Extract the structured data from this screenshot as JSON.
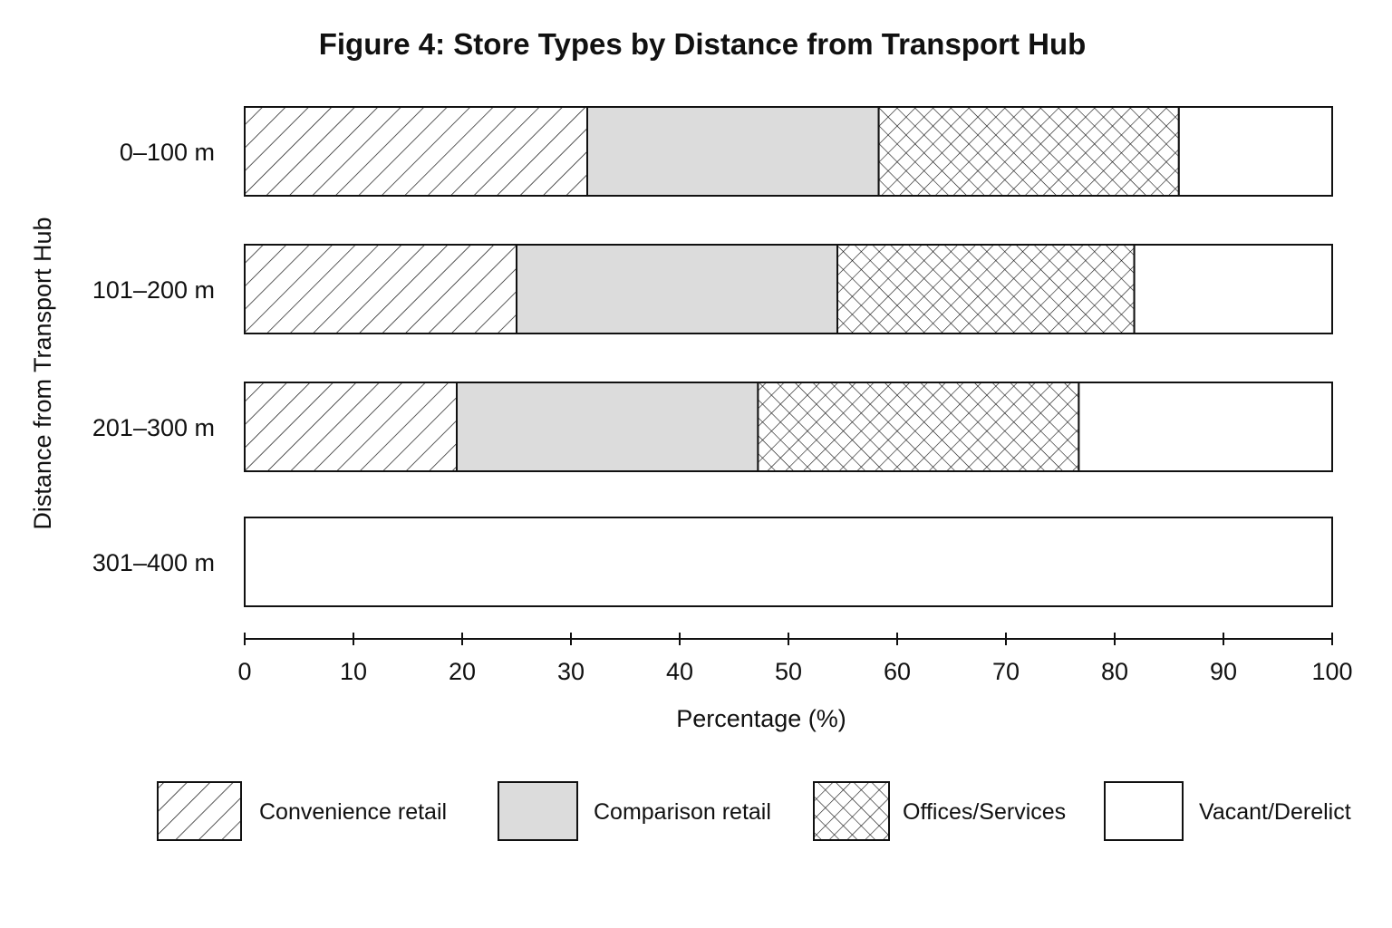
{
  "chart_data": {
    "type": "bar",
    "orientation": "horizontal",
    "stacked": true,
    "title": "Figure 4: Store Types by Distance from Transport Hub",
    "xlabel": "Percentage (%)",
    "ylabel": "Distance from Transport Hub",
    "xlim": [
      0,
      100
    ],
    "xticks": [
      "0",
      "10",
      "20",
      "30",
      "40",
      "50",
      "60",
      "70",
      "80",
      "90",
      "100"
    ],
    "categories": [
      "0–100 m",
      "101–200 m",
      "201–300 m",
      "301–400 m"
    ],
    "series": [
      {
        "name": "Convenience retail",
        "pattern": "diagonal-hatch",
        "values": [
          31.5,
          25,
          19.5,
          0
        ]
      },
      {
        "name": "Comparison retail",
        "pattern": "solid",
        "color": "#dcdcdc",
        "values": [
          26.8,
          29.5,
          27.7,
          0
        ]
      },
      {
        "name": "Offices/Services",
        "pattern": "crosshatch",
        "values": [
          27.6,
          27.3,
          29.5,
          0
        ]
      },
      {
        "name": "Vacant/Derelict",
        "pattern": "solid",
        "color": "#ffffff",
        "values": [
          14.1,
          18.2,
          23.3,
          100
        ]
      }
    ],
    "legend_position": "bottom",
    "grid": false
  }
}
